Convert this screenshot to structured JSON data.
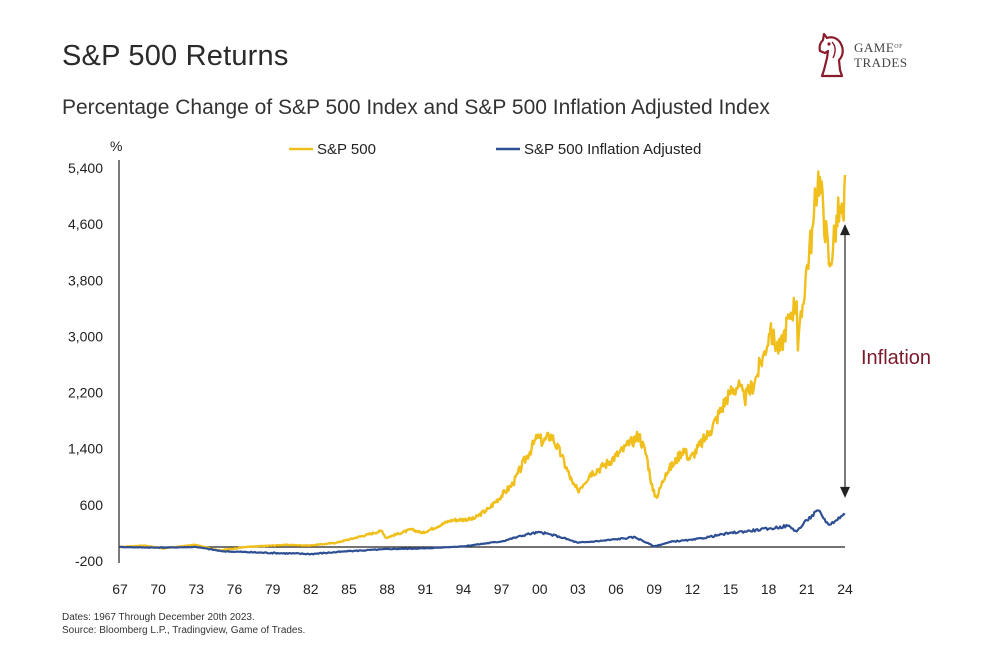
{
  "header": {
    "title": "S&P 500 Returns",
    "subtitle": "Percentage Change of S&P 500 Index and S&P 500 Inflation Adjusted Index"
  },
  "logo": {
    "line1": "GAME",
    "line1_small": "OF",
    "line2": "TRADES",
    "icon": "knight-chess-icon",
    "color": "#8b1a2b"
  },
  "footer": {
    "dates": "Dates: 1967 Through December 20th 2023.",
    "source": "Source: Bloomberg L.P., Tradingview, Game of Trades."
  },
  "chart_data": {
    "type": "line",
    "title": "S&P 500 Returns",
    "ylabel": "%",
    "xlabel": "",
    "xlim": [
      1967,
      2024
    ],
    "ylim": [
      -200,
      5400
    ],
    "yticks": [
      -200,
      600,
      1400,
      2200,
      3000,
      3800,
      4600,
      5400
    ],
    "ytick_labels": [
      "-200",
      "600",
      "1,400",
      "2,200",
      "3,000",
      "3,800",
      "4,600",
      "5,400"
    ],
    "xticks": [
      1967,
      1970,
      1973,
      1976,
      1979,
      1982,
      1985,
      1988,
      1991,
      1994,
      1997,
      2000,
      2003,
      2006,
      2009,
      2012,
      2015,
      2018,
      2021,
      2024
    ],
    "xtick_labels": [
      "67",
      "70",
      "73",
      "76",
      "79",
      "82",
      "85",
      "88",
      "91",
      "94",
      "97",
      "00",
      "03",
      "06",
      "09",
      "12",
      "15",
      "18",
      "21",
      "24"
    ],
    "zero_line": true,
    "grid": false,
    "legend_position": "top",
    "annotation": {
      "text": "Inflation",
      "from_value": 4600,
      "to_value": 700,
      "at_x": 2024.0
    },
    "series": [
      {
        "name": "S&P 500",
        "color": "#f0bf1c",
        "points": [
          [
            1967.0,
            0
          ],
          [
            1968.9,
            20
          ],
          [
            1970.4,
            -20
          ],
          [
            1972.9,
            30
          ],
          [
            1974.8,
            -50
          ],
          [
            1976.9,
            0
          ],
          [
            1980.0,
            30
          ],
          [
            1981.9,
            20
          ],
          [
            1984.0,
            60
          ],
          [
            1987.6,
            230
          ],
          [
            1987.9,
            130
          ],
          [
            1989.9,
            250
          ],
          [
            1990.8,
            200
          ],
          [
            1993.0,
            380
          ],
          [
            1994.8,
            400
          ],
          [
            1996.0,
            550
          ],
          [
            1997.9,
            900
          ],
          [
            1999.0,
            1300
          ],
          [
            1999.8,
            1550
          ],
          [
            2000.3,
            1500
          ],
          [
            2000.9,
            1600
          ],
          [
            2001.7,
            1300
          ],
          [
            2002.6,
            900
          ],
          [
            2003.0,
            800
          ],
          [
            2004.0,
            1050
          ],
          [
            2005.0,
            1150
          ],
          [
            2006.0,
            1300
          ],
          [
            2007.0,
            1450
          ],
          [
            2007.8,
            1600
          ],
          [
            2008.4,
            1300
          ],
          [
            2008.9,
            800
          ],
          [
            2009.2,
            700
          ],
          [
            2009.9,
            1050
          ],
          [
            2010.6,
            1200
          ],
          [
            2011.3,
            1400
          ],
          [
            2011.8,
            1250
          ],
          [
            2012.6,
            1450
          ],
          [
            2013.4,
            1650
          ],
          [
            2014.1,
            1900
          ],
          [
            2014.9,
            2200
          ],
          [
            2015.6,
            2300
          ],
          [
            2016.1,
            2100
          ],
          [
            2016.9,
            2350
          ],
          [
            2017.6,
            2750
          ],
          [
            2018.1,
            3050
          ],
          [
            2018.9,
            2800
          ],
          [
            2019.6,
            3300
          ],
          [
            2020.2,
            3500
          ],
          [
            2020.3,
            2800
          ],
          [
            2020.9,
            3850
          ],
          [
            2021.5,
            4600
          ],
          [
            2021.9,
            5350
          ],
          [
            2022.3,
            4800
          ],
          [
            2022.8,
            4000
          ],
          [
            2023.2,
            4500
          ],
          [
            2023.6,
            4850
          ],
          [
            2023.9,
            4650
          ],
          [
            2024.0,
            5300
          ]
        ]
      },
      {
        "name": "S&P 500 Inflation Adjusted",
        "color": "#2f4f94",
        "points": [
          [
            1967.0,
            0
          ],
          [
            1970.0,
            -10
          ],
          [
            1973.0,
            0
          ],
          [
            1975.0,
            -60
          ],
          [
            1978.0,
            -80
          ],
          [
            1982.0,
            -100
          ],
          [
            1985.0,
            -60
          ],
          [
            1988.0,
            -30
          ],
          [
            1991.0,
            -20
          ],
          [
            1994.0,
            10
          ],
          [
            1997.0,
            80
          ],
          [
            1999.0,
            180
          ],
          [
            2000.0,
            210
          ],
          [
            2001.5,
            150
          ],
          [
            2003.0,
            60
          ],
          [
            2005.0,
            90
          ],
          [
            2007.5,
            140
          ],
          [
            2009.0,
            10
          ],
          [
            2010.5,
            80
          ],
          [
            2012.0,
            100
          ],
          [
            2015.0,
            200
          ],
          [
            2018.0,
            260
          ],
          [
            2019.5,
            300
          ],
          [
            2020.2,
            220
          ],
          [
            2021.0,
            380
          ],
          [
            2021.9,
            520
          ],
          [
            2022.7,
            320
          ],
          [
            2023.3,
            380
          ],
          [
            2023.7,
            440
          ],
          [
            2024.0,
            460
          ]
        ]
      }
    ]
  }
}
